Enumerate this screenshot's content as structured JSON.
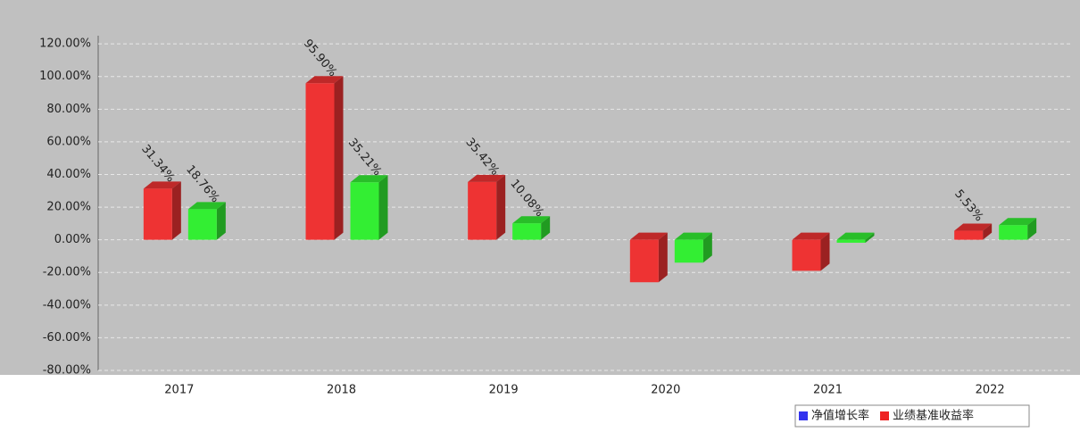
{
  "chart_data": {
    "type": "bar3d",
    "categories": [
      "2017",
      "2018",
      "2019",
      "2020",
      "2021",
      "2022"
    ],
    "series": [
      {
        "name": "业绩基准收益率",
        "color": "#ee3333",
        "legend_color": "#ee2222",
        "values": [
          31.34,
          95.9,
          35.42,
          -26,
          -19,
          5.53
        ],
        "value_labels": [
          "31.34%",
          "95.90%",
          "35.42%",
          null,
          null,
          "5.53%"
        ]
      },
      {
        "name": "净值增长率",
        "color": "#33ee33",
        "legend_color": "#3333ee",
        "values": [
          18.76,
          35.21,
          10.08,
          -14,
          -1.8,
          9
        ],
        "value_labels": [
          "18.76%",
          "35.21%",
          "10.08%",
          null,
          null,
          null
        ]
      }
    ],
    "ylim": [
      -80,
      125
    ],
    "yticks": [
      {
        "value": -80,
        "label": "-80.00%"
      },
      {
        "value": -60,
        "label": "-60.00%"
      },
      {
        "value": -40,
        "label": "-40.00%"
      },
      {
        "value": -20,
        "label": "-20.00%"
      },
      {
        "value": 0,
        "label": "0.00%"
      },
      {
        "value": 20,
        "label": "20.00%"
      },
      {
        "value": 40,
        "label": "40.00%"
      },
      {
        "value": 60,
        "label": "60.00%"
      },
      {
        "value": 80,
        "label": "80.00%"
      },
      {
        "value": 100,
        "label": "100.00%"
      },
      {
        "value": 120,
        "label": "120.00%"
      }
    ],
    "grid": true,
    "legend": "bottom-right"
  }
}
